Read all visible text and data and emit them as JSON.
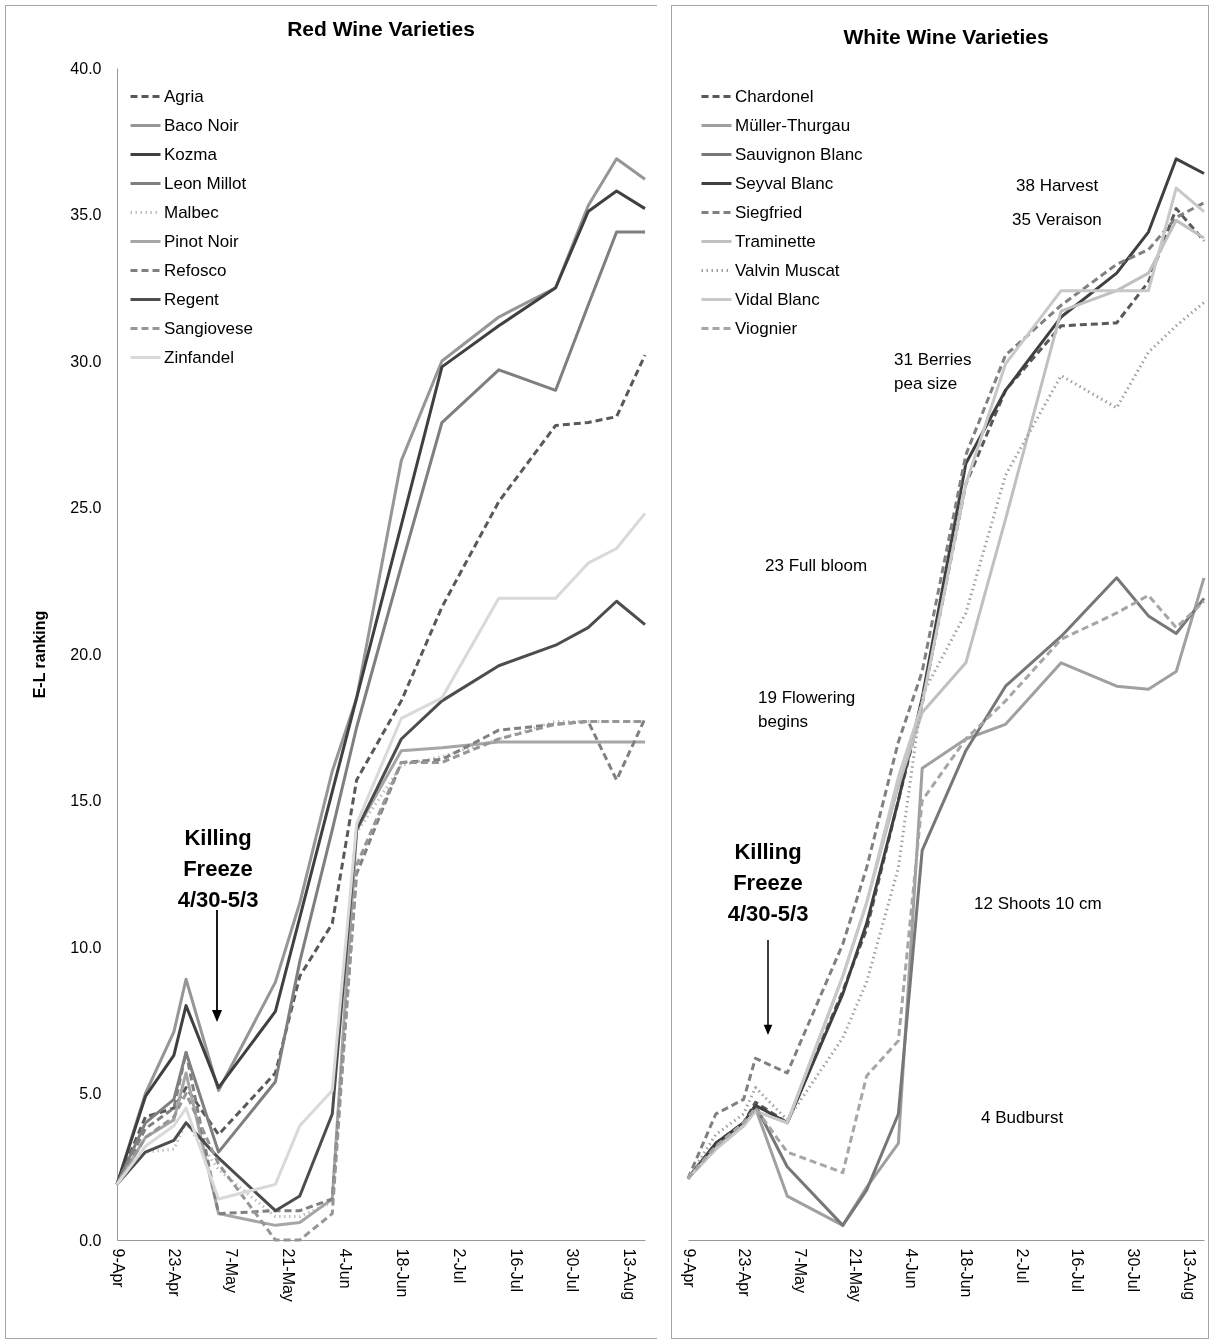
{
  "chart_data": [
    {
      "type": "line",
      "title": "Red Wine Varieties",
      "ylabel": "E-L ranking",
      "x": [
        "--04-09",
        "--04-16",
        "--04-23",
        "--04-26",
        "--05-04",
        "--05-18",
        "--05-24",
        "--06-01",
        "--06-07",
        "--06-18",
        "--06-28",
        "--07-12",
        "--07-26",
        "--08-03",
        "--08-10",
        "--08-17"
      ],
      "xlim": [
        "--04-09",
        "--08-17"
      ],
      "xticks": [
        {
          "value": "--04-09",
          "label": "9-Apr"
        },
        {
          "value": "--04-23",
          "label": "23-Apr"
        },
        {
          "value": "--05-07",
          "label": "7-May"
        },
        {
          "value": "--05-21",
          "label": "21-May"
        },
        {
          "value": "--06-04",
          "label": "4-Jun"
        },
        {
          "value": "--06-18",
          "label": "18-Jun"
        },
        {
          "value": "--07-02",
          "label": "2-Jul"
        },
        {
          "value": "--07-16",
          "label": "16-Jul"
        },
        {
          "value": "--07-30",
          "label": "30-Jul"
        },
        {
          "value": "--08-13",
          "label": "13-Aug"
        }
      ],
      "ylim": [
        0,
        40
      ],
      "yticks": [
        {
          "value": 0,
          "label": "0.0"
        },
        {
          "value": 5,
          "label": "5.0"
        },
        {
          "value": 10,
          "label": "10.0"
        },
        {
          "value": 15,
          "label": "15.0"
        },
        {
          "value": 20,
          "label": "20.0"
        },
        {
          "value": 25,
          "label": "25.0"
        },
        {
          "value": 30,
          "label": "30.0"
        },
        {
          "value": 35,
          "label": "35.0"
        },
        {
          "value": 40,
          "label": "40.0"
        }
      ],
      "legend": "top left",
      "series": [
        {
          "name": "Agria",
          "color": "#595959",
          "line_style": "dashed",
          "values": [
            1.9,
            4.2,
            4.5,
            5.2,
            3.6,
            5.7,
            9.0,
            10.8,
            15.7,
            18.4,
            21.6,
            25.2,
            27.8,
            27.9,
            28.1,
            30.2
          ]
        },
        {
          "name": "Baco Noir",
          "color": "#969696",
          "line_style": "solid",
          "values": [
            1.9,
            5.0,
            7.1,
            8.9,
            5.1,
            8.8,
            11.5,
            16.0,
            18.5,
            26.6,
            30.0,
            31.5,
            32.5,
            35.3,
            36.9,
            36.2
          ]
        },
        {
          "name": "Kozma",
          "color": "#404040",
          "line_style": "solid",
          "values": [
            1.9,
            4.9,
            6.3,
            8.0,
            5.2,
            7.8,
            11.0,
            15.3,
            18.5,
            24.4,
            29.8,
            31.2,
            32.5,
            35.1,
            35.8,
            35.2
          ]
        },
        {
          "name": "Leon Millot",
          "color": "#7f7f7f",
          "line_style": "solid",
          "values": [
            1.9,
            4.0,
            4.8,
            6.4,
            3.0,
            5.4,
            9.5,
            14.0,
            17.5,
            23.0,
            27.9,
            29.7,
            29.0,
            31.9,
            34.4,
            34.4
          ]
        },
        {
          "name": "Malbec",
          "color": "#bfbfbf",
          "line_style": "dotted",
          "values": [
            1.9,
            3.0,
            3.1,
            4.0,
            2.4,
            0.8,
            0.8,
            1.3,
            13.9,
            16.2,
            16.5,
            17.1,
            17.7,
            17.7,
            17.7,
            17.7
          ]
        },
        {
          "name": "Pinot Noir",
          "color": "#a6a6a6",
          "line_style": "solid",
          "values": [
            1.9,
            3.5,
            4.1,
            5.7,
            0.9,
            0.5,
            0.6,
            1.4,
            14.0,
            16.7,
            16.8,
            17.0,
            17.0,
            17.0,
            17.0,
            17.0
          ]
        },
        {
          "name": "Refosco",
          "color": "#808080",
          "line_style": "dashed",
          "values": [
            1.9,
            3.8,
            4.5,
            6.4,
            0.9,
            1.0,
            1.0,
            1.4,
            12.5,
            16.3,
            16.4,
            17.4,
            17.6,
            17.7,
            15.7,
            17.8
          ]
        },
        {
          "name": "Regent",
          "color": "#4d4d4d",
          "line_style": "solid",
          "values": [
            1.9,
            3.0,
            3.4,
            4.0,
            2.8,
            1.0,
            1.5,
            4.3,
            14.0,
            17.1,
            18.4,
            19.6,
            20.3,
            20.9,
            21.8,
            21.0
          ]
        },
        {
          "name": "Sangiovese",
          "color": "#969696",
          "line_style": "dashed",
          "values": [
            1.9,
            3.5,
            4.2,
            5.0,
            2.6,
            0.0,
            0.0,
            0.9,
            12.8,
            16.3,
            16.3,
            17.1,
            17.6,
            17.7,
            17.7,
            17.7
          ]
        },
        {
          "name": "Zinfandel",
          "color": "#d9d9d9",
          "line_style": "solid",
          "values": [
            1.9,
            3.2,
            3.9,
            4.5,
            1.4,
            1.9,
            3.9,
            5.1,
            14.2,
            17.8,
            18.5,
            21.9,
            21.9,
            23.1,
            23.6,
            24.8
          ]
        }
      ],
      "annotations": [
        "Killing\nFreeze\n4/30-5/3"
      ]
    },
    {
      "type": "line",
      "title": "White Wine Varieties",
      "x": [
        "--04-09",
        "--04-16",
        "--04-23",
        "--04-26",
        "--05-04",
        "--05-18",
        "--05-24",
        "--06-01",
        "--06-07",
        "--06-18",
        "--06-28",
        "--07-12",
        "--07-26",
        "--08-03",
        "--08-10",
        "--08-17"
      ],
      "xlim": [
        "--04-09",
        "--08-17"
      ],
      "xticks": [
        {
          "value": "--04-09",
          "label": "9-Apr"
        },
        {
          "value": "--04-23",
          "label": "23-Apr"
        },
        {
          "value": "--05-07",
          "label": "7-May"
        },
        {
          "value": "--05-21",
          "label": "21-May"
        },
        {
          "value": "--06-04",
          "label": "4-Jun"
        },
        {
          "value": "--06-18",
          "label": "18-Jun"
        },
        {
          "value": "--07-02",
          "label": "2-Jul"
        },
        {
          "value": "--07-16",
          "label": "16-Jul"
        },
        {
          "value": "--07-30",
          "label": "30-Jul"
        },
        {
          "value": "--08-13",
          "label": "13-Aug"
        }
      ],
      "ylim": [
        0,
        40
      ],
      "tick_labels": "x",
      "legend": "top left",
      "series": [
        {
          "name": "Chardonel",
          "color": "#595959",
          "line_style": "dashed",
          "values": [
            2.1,
            3.3,
            4.0,
            4.7,
            4.0,
            8.5,
            10.6,
            15.0,
            18.3,
            25.8,
            29.0,
            31.2,
            31.3,
            32.7,
            35.2,
            34.1
          ]
        },
        {
          "name": "Müller-Thurgau",
          "color": "#a0a0a0",
          "line_style": "solid",
          "values": [
            2.1,
            3.2,
            3.9,
            4.5,
            1.5,
            0.5,
            1.8,
            3.3,
            16.1,
            17.1,
            17.6,
            19.7,
            18.9,
            18.8,
            19.4,
            22.6
          ]
        },
        {
          "name": "Sauvignon Blanc",
          "color": "#777777",
          "line_style": "solid",
          "values": [
            2.1,
            3.3,
            3.9,
            4.6,
            2.5,
            0.5,
            1.7,
            4.3,
            13.3,
            16.7,
            18.9,
            20.6,
            22.6,
            21.3,
            20.7,
            21.9
          ]
        },
        {
          "name": "Seyval Blanc",
          "color": "#404040",
          "line_style": "solid",
          "values": [
            2.1,
            3.3,
            4.0,
            4.6,
            4.0,
            8.4,
            10.8,
            15.0,
            18.5,
            26.5,
            29.0,
            31.5,
            33.0,
            34.4,
            36.9,
            36.4
          ]
        },
        {
          "name": "Siegfried",
          "color": "#808080",
          "line_style": "dashed",
          "values": [
            2.1,
            4.3,
            4.8,
            6.2,
            5.7,
            10.1,
            12.7,
            17.0,
            19.4,
            26.8,
            30.2,
            31.9,
            33.3,
            33.8,
            34.9,
            35.4
          ]
        },
        {
          "name": "Traminette",
          "color": "#c0c0c0",
          "line_style": "solid",
          "values": [
            2.1,
            3.1,
            3.9,
            4.4,
            4.0,
            9.0,
            11.5,
            15.5,
            18.0,
            19.7,
            24.6,
            31.7,
            32.4,
            33.0,
            34.8,
            34.2
          ]
        },
        {
          "name": "Valvin Muscat",
          "color": "#a0a0a0",
          "line_style": "dotted",
          "values": [
            2.1,
            3.6,
            4.3,
            5.2,
            4.1,
            6.9,
            8.8,
            12.7,
            18.6,
            21.4,
            26.1,
            29.5,
            28.4,
            30.3,
            31.2,
            32.0
          ]
        },
        {
          "name": "Vidal Blanc",
          "color": "#c8c8c8",
          "line_style": "solid",
          "values": [
            2.1,
            3.1,
            3.9,
            4.4,
            4.0,
            9.0,
            11.5,
            15.8,
            18.3,
            25.8,
            29.9,
            32.4,
            32.4,
            32.4,
            35.9,
            35.1
          ]
        },
        {
          "name": "Viognier",
          "color": "#a6a6a6",
          "line_style": "dashed",
          "values": [
            2.1,
            3.2,
            4.0,
            4.5,
            3.0,
            2.3,
            5.6,
            6.8,
            15.0,
            17.1,
            18.4,
            20.5,
            21.4,
            22.0,
            20.9,
            21.8
          ]
        }
      ],
      "annotations": [
        "Killing\nFreeze\n4/30-5/3",
        "38 Harvest",
        "35 Veraison",
        "31 Berries\npea size",
        "23 Full bloom",
        "19 Flowering\nbegins",
        "12 Shoots 10 cm",
        "4 Budburst"
      ]
    }
  ]
}
